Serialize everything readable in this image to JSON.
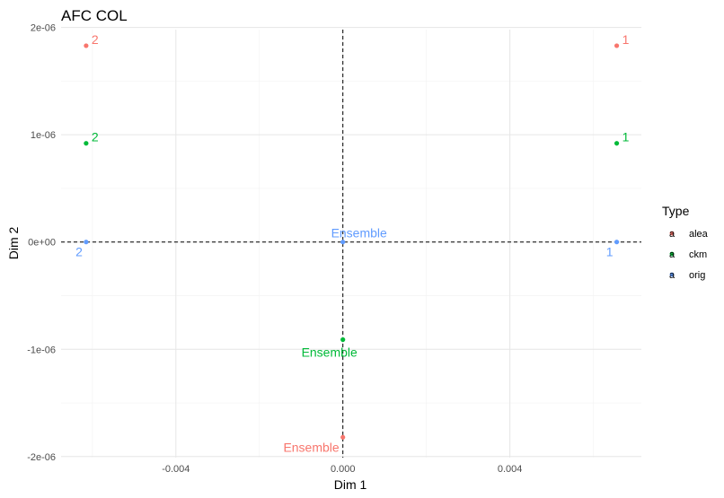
{
  "chart_data": {
    "type": "scatter",
    "title": "AFC COL",
    "xlabel": "Dim 1",
    "ylabel": "Dim 2",
    "xlim": [
      -0.00675,
      0.00715
    ],
    "ylim": [
      -2.01e-06,
      1.98e-06
    ],
    "xticks": [
      {
        "value": -0.004,
        "label": "-0.004"
      },
      {
        "value": 0.0,
        "label": "0.000"
      },
      {
        "value": 0.004,
        "label": "0.004"
      }
    ],
    "yticks": [
      {
        "value": 2e-06,
        "label": "2e-06"
      },
      {
        "value": 1e-06,
        "label": "1e-06"
      },
      {
        "value": 0.0,
        "label": "0e+00"
      },
      {
        "value": -1e-06,
        "label": "-1e-06"
      },
      {
        "value": -2e-06,
        "label": "-2e-06"
      }
    ],
    "grid": true,
    "reference_lines": {
      "x": 0,
      "y": 0,
      "style": "dashed"
    },
    "legend": {
      "title": "Type",
      "placement": "right",
      "key_glyph": "a"
    },
    "series": [
      {
        "name": "alea",
        "color": "#F8766D",
        "points": [
          {
            "label": "1",
            "x": 0.00656,
            "y": 1.83e-06,
            "label_pos": "right"
          },
          {
            "label": "2",
            "x": -0.00615,
            "y": 1.83e-06,
            "label_pos": "right"
          },
          {
            "label": "Ensemble",
            "x": 0.0,
            "y": -1.82e-06,
            "label_pos": "below-left"
          }
        ]
      },
      {
        "name": "ckm",
        "color": "#00BA38",
        "points": [
          {
            "label": "1",
            "x": 0.00656,
            "y": 9.2e-07,
            "label_pos": "right"
          },
          {
            "label": "2",
            "x": -0.00615,
            "y": 9.2e-07,
            "label_pos": "right"
          },
          {
            "label": "Ensemble",
            "x": 0.0,
            "y": -9.1e-07,
            "label_pos": "below"
          }
        ]
      },
      {
        "name": "orig",
        "color": "#619CFF",
        "points": [
          {
            "label": "1",
            "x": 0.00656,
            "y": 0.0,
            "label_pos": "below-left"
          },
          {
            "label": "2",
            "x": -0.00615,
            "y": 0.0,
            "label_pos": "below-left"
          },
          {
            "label": "Ensemble",
            "x": 0.0,
            "y": 0.0,
            "label_pos": "above"
          }
        ]
      }
    ]
  }
}
